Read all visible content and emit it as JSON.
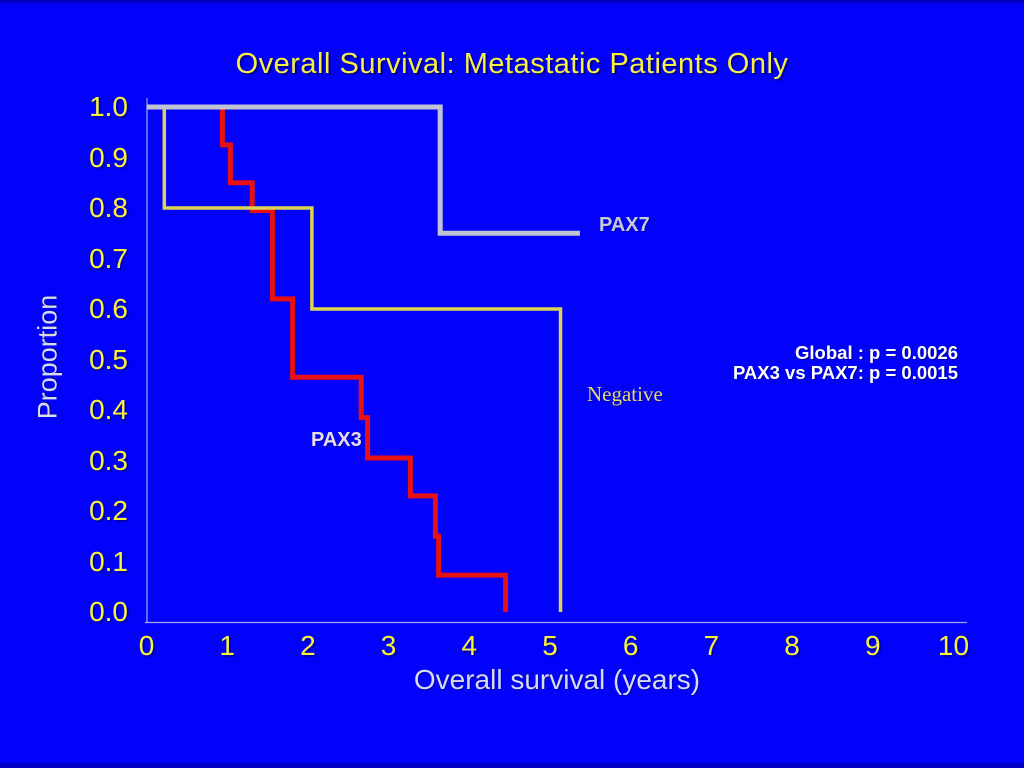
{
  "slide": {
    "background_color": "#0202fa",
    "title_color": "#f8ef43",
    "tick_label_color": "#fbf33a",
    "axis_title_color": "#d8dbec",
    "annotation_color": "#ffffff"
  },
  "chart_data": {
    "type": "line",
    "subtype": "kaplan-meier-step-survival",
    "title": "Overall Survival: Metastatic Patients Only",
    "xlabel": "Overall survival (years)",
    "ylabel": "Proportion",
    "xlim": [
      0,
      10
    ],
    "ylim": [
      0.0,
      1.0
    ],
    "grid": false,
    "legend_position": "curve-end-labels",
    "x_ticks": [
      "0",
      "1",
      "2",
      "3",
      "4",
      "5",
      "6",
      "7",
      "8",
      "9",
      "10"
    ],
    "y_ticks": [
      "1.0",
      "0.9",
      "0.8",
      "0.7",
      "0.6",
      "0.5",
      "0.4",
      "0.3",
      "0.2",
      "0.1",
      "0.0"
    ],
    "series": [
      {
        "name": "PAX3",
        "color": "#e81111",
        "label_color": "#e9dce6",
        "points": [
          [
            0,
            1.0
          ],
          [
            0.94,
            1.0
          ],
          [
            0.94,
            0.925
          ],
          [
            1.04,
            0.925
          ],
          [
            1.04,
            0.85
          ],
          [
            1.31,
            0.85
          ],
          [
            1.31,
            0.795
          ],
          [
            1.56,
            0.795
          ],
          [
            1.56,
            0.62
          ],
          [
            1.81,
            0.62
          ],
          [
            1.81,
            0.465
          ],
          [
            2.66,
            0.465
          ],
          [
            2.66,
            0.385
          ],
          [
            2.74,
            0.385
          ],
          [
            2.74,
            0.305
          ],
          [
            3.27,
            0.305
          ],
          [
            3.27,
            0.23
          ],
          [
            3.58,
            0.23
          ],
          [
            3.58,
            0.15
          ],
          [
            3.62,
            0.15
          ],
          [
            3.62,
            0.073
          ],
          [
            4.45,
            0.073
          ],
          [
            4.45,
            0.0
          ]
        ]
      },
      {
        "name": "Negative",
        "color": "#ddd44f",
        "label_color": "#e6d96d",
        "points": [
          [
            0,
            1.0
          ],
          [
            0.22,
            1.0
          ],
          [
            0.22,
            0.8
          ],
          [
            2.05,
            0.8
          ],
          [
            2.05,
            0.6
          ],
          [
            5.13,
            0.6
          ],
          [
            5.13,
            0.0
          ]
        ]
      },
      {
        "name": "PAX7",
        "color": "#bfc3d2",
        "label_color": "#c6cada",
        "points": [
          [
            0,
            1.0
          ],
          [
            3.64,
            1.0
          ],
          [
            3.64,
            0.75
          ],
          [
            5.37,
            0.75
          ]
        ]
      }
    ],
    "annotations": [
      "Global : p = 0.0026",
      "PAX3 vs PAX7: p = 0.0015"
    ]
  }
}
